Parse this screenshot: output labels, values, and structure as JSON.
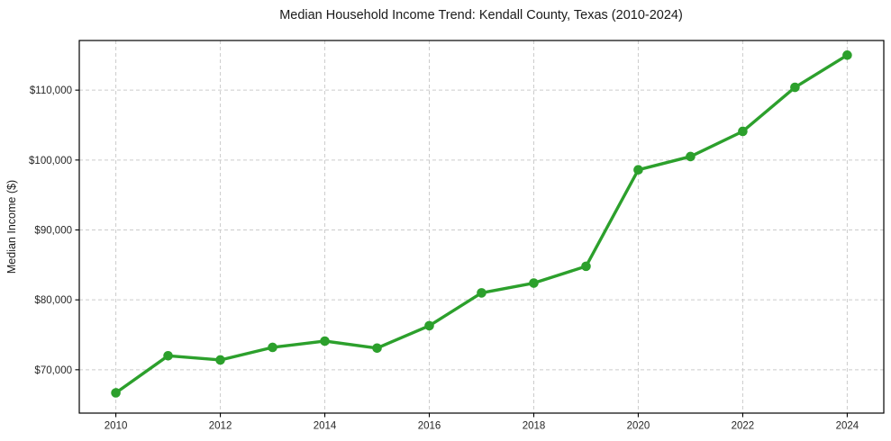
{
  "page": {
    "background": "#ffffff"
  },
  "chart_data": {
    "type": "line",
    "title": "Median Household Income Trend: Kendall County, Texas (2010-2024)",
    "xlabel": "",
    "ylabel": "Median Income ($)",
    "x": [
      2010,
      2011,
      2012,
      2013,
      2014,
      2015,
      2016,
      2017,
      2018,
      2019,
      2020,
      2021,
      2022,
      2023,
      2024
    ],
    "values": [
      66700,
      72000,
      71400,
      73200,
      74100,
      73100,
      76300,
      81000,
      82400,
      84800,
      98600,
      100500,
      104100,
      110400,
      115000
    ],
    "x_ticks": [
      2010,
      2012,
      2014,
      2016,
      2018,
      2020,
      2022,
      2024
    ],
    "x_tick_labels": [
      "2010",
      "2012",
      "2014",
      "2016",
      "2018",
      "2020",
      "2022",
      "2024"
    ],
    "y_ticks": [
      70000,
      80000,
      90000,
      100000,
      110000
    ],
    "y_tick_labels": [
      "$70,000",
      "$80,000",
      "$90,000",
      "$100,000",
      "$110,000"
    ],
    "xlim": [
      2009.3,
      2024.7
    ],
    "ylim": [
      63800,
      117100
    ],
    "grid": true,
    "grid_style": "dashed",
    "legend": "none",
    "line_color": "#2ca02c",
    "marker": "circle",
    "grid_color": "#cccccc",
    "spine_color": "#000000",
    "plot_background": "#ffffff"
  }
}
